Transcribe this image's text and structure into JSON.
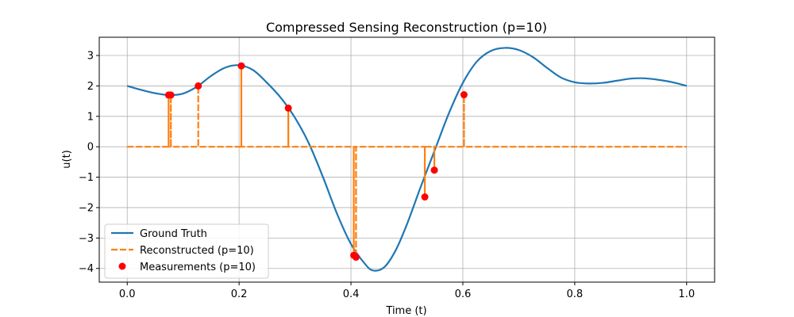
{
  "chart_data": {
    "type": "line",
    "title": "Compressed Sensing Reconstruction (p=10)",
    "xlabel": "Time (t)",
    "ylabel": "u(t)",
    "xlim": [
      -0.05,
      1.05
    ],
    "ylim": [
      -4.45,
      3.6
    ],
    "xticks": [
      0.0,
      0.2,
      0.4,
      0.6,
      0.8,
      1.0
    ],
    "xtick_labels": [
      "0.0",
      "0.2",
      "0.4",
      "0.6",
      "0.8",
      "1.0"
    ],
    "yticks": [
      -4,
      -3,
      -2,
      -1,
      0,
      1,
      2,
      3
    ],
    "ytick_labels": [
      "−4",
      "−3",
      "−2",
      "−1",
      "0",
      "1",
      "2",
      "3"
    ],
    "grid": true,
    "legend_position": "lower-left",
    "series": [
      {
        "name": "Ground Truth",
        "style": "solid",
        "color": "#1f77b4",
        "x": [
          0.0,
          0.025,
          0.05,
          0.075,
          0.1,
          0.125,
          0.15,
          0.175,
          0.2,
          0.225,
          0.25,
          0.275,
          0.3,
          0.325,
          0.35,
          0.375,
          0.4,
          0.425,
          0.44,
          0.46,
          0.48,
          0.5,
          0.525,
          0.55,
          0.575,
          0.6,
          0.625,
          0.65,
          0.675,
          0.7,
          0.725,
          0.75,
          0.775,
          0.8,
          0.825,
          0.85,
          0.875,
          0.9,
          0.925,
          0.95,
          0.975,
          1.0
        ],
        "y": [
          2.0,
          1.87,
          1.76,
          1.7,
          1.75,
          1.98,
          2.33,
          2.6,
          2.68,
          2.52,
          2.1,
          1.6,
          0.95,
          0.1,
          -1.0,
          -2.2,
          -3.2,
          -3.85,
          -4.07,
          -3.95,
          -3.4,
          -2.55,
          -1.3,
          -0.1,
          1.1,
          2.1,
          2.8,
          3.15,
          3.25,
          3.18,
          2.95,
          2.6,
          2.28,
          2.12,
          2.08,
          2.1,
          2.17,
          2.24,
          2.25,
          2.2,
          2.12,
          2.0
        ]
      },
      {
        "name": "Reconstructed (p=10)",
        "style": "dashed",
        "color": "#ff7f0e",
        "x": [
          0.0,
          0.074,
          0.074,
          0.074,
          0.078,
          0.078,
          0.078,
          0.127,
          0.127,
          0.127,
          0.204,
          0.204,
          0.204,
          0.288,
          0.288,
          0.288,
          0.405,
          0.405,
          0.405,
          0.409,
          0.409,
          0.409,
          0.532,
          0.532,
          0.532,
          0.549,
          0.549,
          0.549,
          0.602,
          0.602,
          0.602,
          1.0
        ],
        "y": [
          0,
          0,
          1.7,
          0,
          0,
          1.7,
          0,
          0,
          2.0,
          0,
          0,
          2.66,
          0,
          0,
          1.27,
          0,
          0,
          -3.57,
          0,
          0,
          -3.63,
          0,
          0,
          -1.65,
          0,
          0,
          -0.77,
          0,
          0,
          1.71,
          0,
          0
        ]
      },
      {
        "name": "Measurements (p=10)",
        "style": "markers",
        "color": "#ff0000",
        "x": [
          0.074,
          0.078,
          0.127,
          0.204,
          0.288,
          0.405,
          0.409,
          0.532,
          0.549,
          0.602
        ],
        "y": [
          1.7,
          1.7,
          2.0,
          2.66,
          1.27,
          -3.57,
          -3.63,
          -1.65,
          -0.77,
          1.71
        ]
      }
    ]
  }
}
